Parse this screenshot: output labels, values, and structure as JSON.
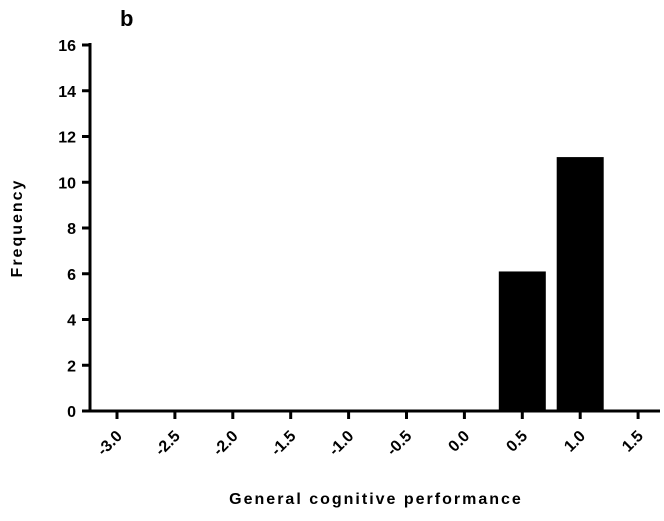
{
  "panel_label": "b",
  "chart_data": {
    "type": "bar",
    "title": "",
    "xlabel": "General cognitive performance",
    "ylabel": "Frequency",
    "categories": [
      "-3.0",
      "-2.5",
      "-2.0",
      "-1.5",
      "-1.0",
      "-0.5",
      "0.0",
      "0.5",
      "1.0",
      "1.5"
    ],
    "values": [
      0,
      0,
      0,
      0,
      0,
      0,
      0,
      6.1,
      11.1,
      0
    ],
    "ylim": [
      0,
      16
    ],
    "yticks": [
      "0",
      "2",
      "4",
      "6",
      "8",
      "10",
      "12",
      "14",
      "16"
    ],
    "grid": false,
    "colors": {
      "bar": "#000000",
      "axis": "#000000"
    }
  }
}
